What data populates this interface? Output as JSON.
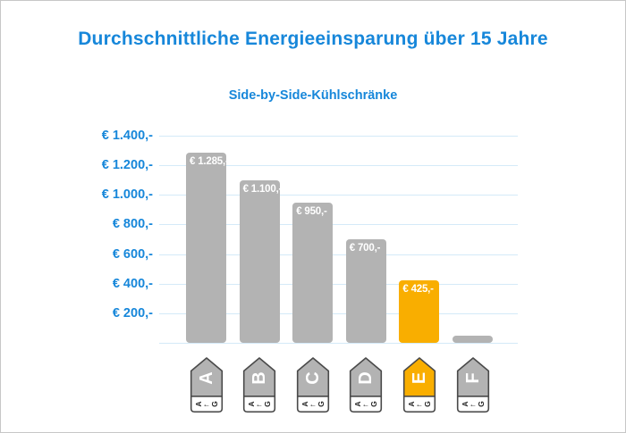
{
  "header": {
    "title": "Durchschnittliche Energieeinsparung über 15 Jahre",
    "subtitle": "Side-by-Side-Kühlschränke"
  },
  "colors": {
    "accent_blue": "#1787da",
    "gridline_blue": "#d4eaf8",
    "bar_gray": "#b3b3b3",
    "bar_highlight_orange": "#f9ae00",
    "tag_border_gray": "#4a4a4a",
    "bar_value_text": "#ffffff",
    "tag_scale_text": "#222222",
    "frame_border": "#c7c7c7",
    "background": "#ffffff"
  },
  "chart_data": {
    "type": "bar",
    "title": "Durchschnittliche Energieeinsparung über 15 Jahre",
    "subtitle": "Side-by-Side-Kühlschränke",
    "xlabel": "",
    "ylabel": "",
    "unit": "EUR",
    "ylim": [
      0,
      1400
    ],
    "grid": true,
    "legend_position": "none",
    "y_ticks": [
      "€ 1.400,-",
      "€ 1.200,-",
      "€ 1.000,-",
      "€ 800,-",
      "€ 600,-",
      "€ 400,-",
      "€ 200,-"
    ],
    "categories": [
      "A",
      "B",
      "C",
      "D",
      "E",
      "F"
    ],
    "values": [
      1285,
      1100,
      950,
      700,
      425,
      50
    ],
    "value_labels": [
      "€ 1.285,-",
      "€ 1.100,-",
      "€ 950,-",
      "€ 700,-",
      "€ 425,-",
      ""
    ],
    "highlighted_category": "E",
    "x_axis_icon": {
      "name": "eu-energy-class-tag",
      "scale_left": "A",
      "scale_arrow": "←",
      "scale_right": "G"
    }
  }
}
